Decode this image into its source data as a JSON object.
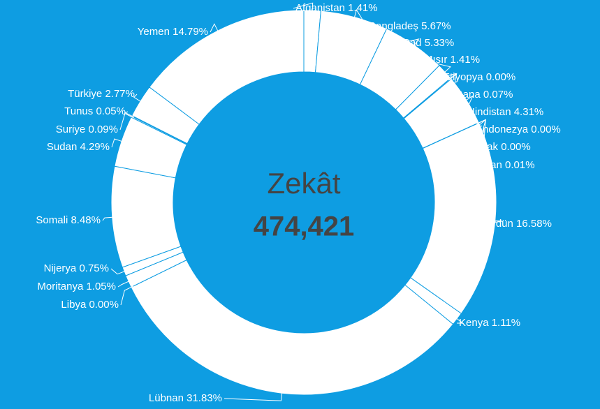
{
  "chart_data": {
    "type": "donut",
    "center_title": "Zekât",
    "center_value": "474,421",
    "categories": [
      "Afganistan",
      "Bangladeş",
      "Çad",
      "Mısır",
      "Etiyopya",
      "Gana",
      "Hindistan",
      "Endonezya",
      "Irak",
      "İran",
      "Ürdün",
      "Kenya",
      "Lübnan",
      "Libya",
      "Moritanya",
      "Nijerya",
      "Somali",
      "Sudan",
      "Suriye",
      "Tunus",
      "Türkiye",
      "Yemen"
    ],
    "values": [
      1.41,
      5.67,
      5.33,
      1.41,
      0.0,
      0.07,
      4.31,
      0.0,
      0.0,
      0.01,
      16.58,
      1.11,
      31.83,
      0.0,
      1.05,
      0.75,
      8.48,
      4.29,
      0.09,
      0.05,
      2.77,
      14.79
    ],
    "value_labels": [
      "1.41%",
      "5.67%",
      "5.33%",
      "1.41%",
      "0.00%",
      "0.07%",
      "4.31%",
      "0.00%",
      "0.00%",
      "0.01%",
      "16.58%",
      "1.11%",
      "31.83%",
      "0.00%",
      "1.05%",
      "0.75%",
      "8.48%",
      "4.29%",
      "0.09%",
      "0.05%",
      "2.77%",
      "14.79%"
    ],
    "color": "#ffffff",
    "background": "#0e9de2"
  }
}
